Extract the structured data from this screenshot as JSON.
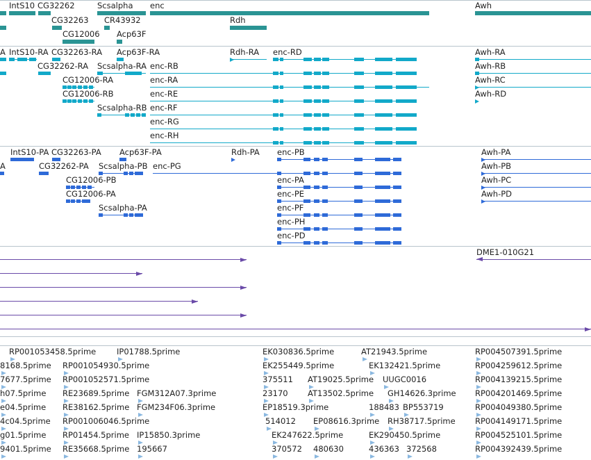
{
  "colors": {
    "gene": "#2a9494",
    "transcript_track1": "#12a9c9",
    "transcript_track2": "#2e6ad8",
    "clone": "#6a4aa8",
    "est": "#8ab8e0",
    "separator": "#b8c4cc"
  },
  "gene_track": {
    "genes": [
      "IntS10",
      "CG32262",
      "Scsalpha",
      "enc",
      "Awh",
      "CG32263",
      "CR43932",
      "Rdh",
      "CG12006",
      "Acp63F"
    ]
  },
  "transcript_track_1": {
    "labels": [
      "A",
      "IntS10-RA",
      "CG32263-RA",
      "Acp63F-RA",
      "Rdh-RA",
      "enc-RD",
      "Awh-RA",
      "CG32262-RA",
      "Scsalpha-RA",
      "enc-RB",
      "Awh-RB",
      "CG12006-RA",
      "enc-RA",
      "Awh-RC",
      "CG12006-RB",
      "enc-RE",
      "Awh-RD",
      "Scsalpha-RB",
      "enc-RF",
      "enc-RG",
      "enc-RH"
    ]
  },
  "transcript_track_2": {
    "labels": [
      "IntS10-PA",
      "CG32263-PA",
      "Acp63F-PA",
      "Rdh-PA",
      "enc-PB",
      "Awh-PA",
      "A",
      "CG32262-PA",
      "Scsalpha-PB",
      "enc-PG",
      "Awh-PB",
      "CG12006-PB",
      "enc-PA",
      "Awh-PC",
      "CG12006-PA",
      "enc-PE",
      "Awh-PD",
      "Scsalpha-PA",
      "enc-PF",
      "enc-PH",
      "enc-PD"
    ]
  },
  "clone_track": {
    "labels": [
      "DME1-010G21"
    ]
  },
  "est_track": {
    "labels": [
      "RP001053458.5prime",
      "IP01788.5prime",
      "EK030836.5prime",
      "AT21943.5prime",
      "RP004507391.5prime",
      "8168.5prime",
      "RP001054930.5prime",
      "EK255449.5prime",
      "EK132421.5prime",
      "RP004259612.5prime",
      "7677.5prime",
      "RP001052571.5prime",
      "375511",
      "AT19025.5prime",
      "UUGC0016",
      "RP004139215.5prime",
      "h07.5prime",
      "RE23689.5prime",
      "FGM312A07.3prime",
      "23170",
      "AT13502.5prime",
      "GH14626.3prime",
      "RP004201469.5prime",
      "e04.5prime",
      "RE38162.5prime",
      "FGM234F06.3prime",
      "EP18519.3prime",
      "188483",
      "BP553719",
      "RP004049380.5prime",
      "4c04.5prime",
      "RP001006046.5prime",
      "514012",
      "EP08616.3prime",
      "RH38717.5prime",
      "RP004149171.5prime",
      "g01.5prime",
      "RP01454.5prime",
      "IP15850.3prime",
      "EK247622.5prime",
      "EK290450.5prime",
      "RP004525101.5prime",
      "9401.5prime",
      "RE35668.5prime",
      "195667",
      "370572",
      "480630",
      "436363",
      "372568",
      "RP004392439.5prime"
    ]
  }
}
